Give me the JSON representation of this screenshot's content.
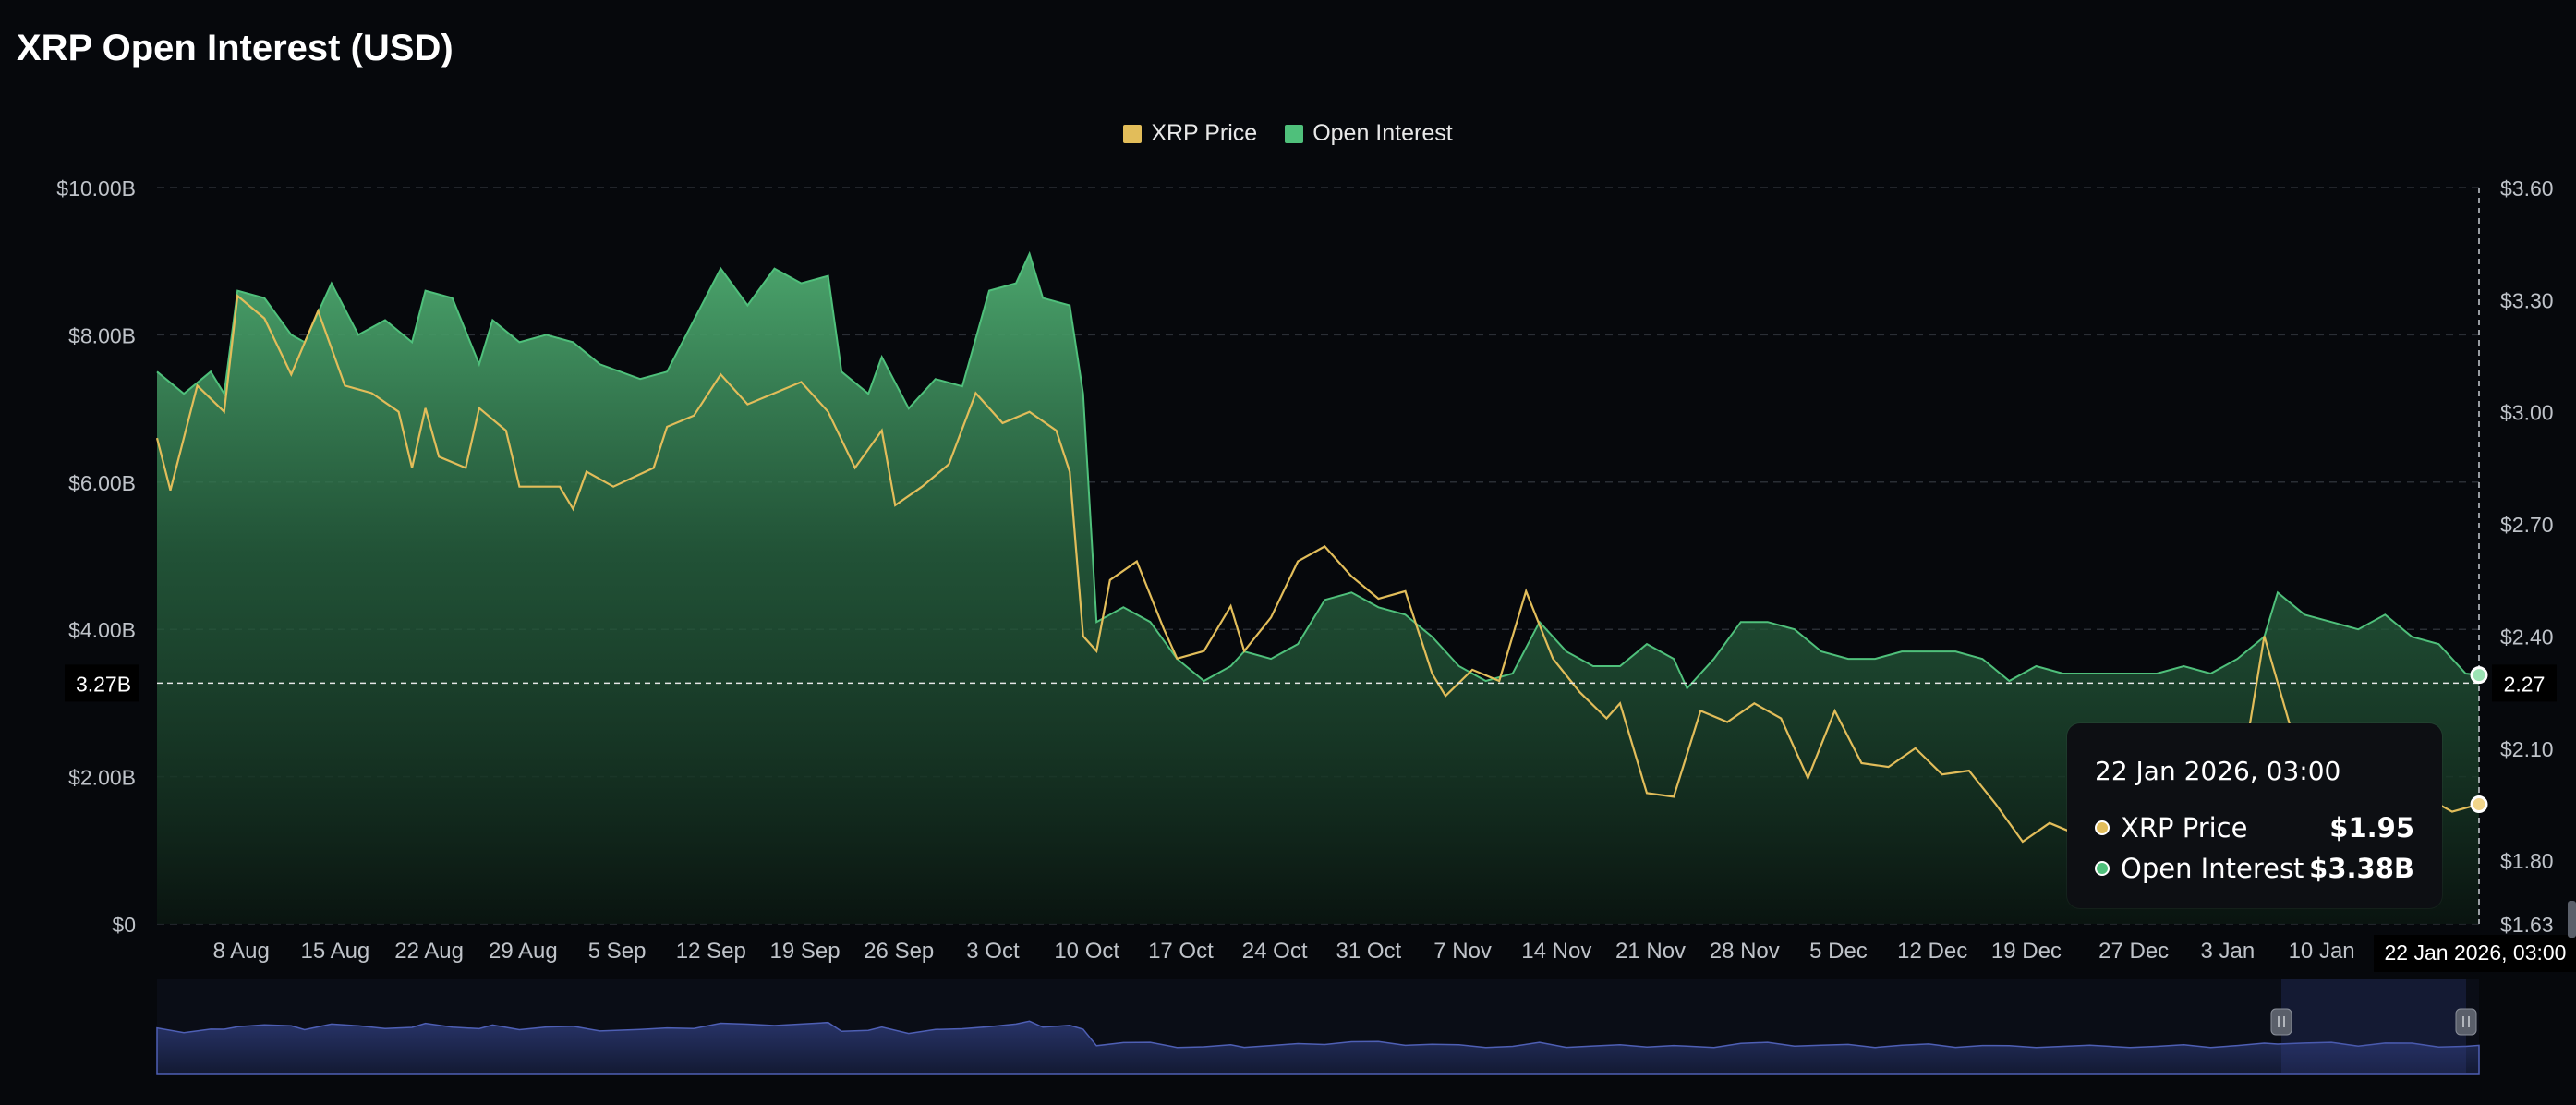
{
  "chart_data": {
    "type": "area",
    "title": "XRP Open Interest (USD)",
    "legend": [
      {
        "name": "XRP Price",
        "color": "#e2bd5a"
      },
      {
        "name": "Open Interest",
        "color": "#4fc07b"
      }
    ],
    "legend_position": "top-center",
    "grid": true,
    "x_ticks": [
      "8 Aug",
      "15 Aug",
      "22 Aug",
      "29 Aug",
      "5 Sep",
      "12 Sep",
      "19 Sep",
      "26 Sep",
      "3 Oct",
      "10 Oct",
      "17 Oct",
      "24 Oct",
      "31 Oct",
      "7 Nov",
      "14 Nov",
      "21 Nov",
      "28 Nov",
      "5 Dec",
      "12 Dec",
      "19 Dec",
      "27 Dec",
      "3 Jan",
      "10 Jan"
    ],
    "x_range": [
      "2025-08-02",
      "2026-01-22"
    ],
    "y_left": {
      "ticks": [
        "$0",
        "$2.00B",
        "$4.00B",
        "$6.00B",
        "$8.00B",
        "$10.00B"
      ],
      "range": [
        0,
        10
      ]
    },
    "y_right": {
      "ticks": [
        "$1.63",
        "$1.80",
        "$2.10",
        "$2.40",
        "$2.70",
        "$3.00",
        "$3.30",
        "$3.60"
      ],
      "range": [
        1.63,
        3.6
      ]
    },
    "series": [
      {
        "name": "Open Interest",
        "unit": "B USD",
        "axis": "left",
        "points": [
          [
            "2025-08-02",
            7.5
          ],
          [
            "2025-08-04",
            7.2
          ],
          [
            "2025-08-06",
            7.5
          ],
          [
            "2025-08-07",
            7.2
          ],
          [
            "2025-08-08",
            8.6
          ],
          [
            "2025-08-10",
            8.5
          ],
          [
            "2025-08-12",
            8.0
          ],
          [
            "2025-08-13",
            7.9
          ],
          [
            "2025-08-15",
            8.7
          ],
          [
            "2025-08-17",
            8.0
          ],
          [
            "2025-08-19",
            8.2
          ],
          [
            "2025-08-21",
            7.9
          ],
          [
            "2025-08-22",
            8.6
          ],
          [
            "2025-08-24",
            8.5
          ],
          [
            "2025-08-26",
            7.6
          ],
          [
            "2025-08-27",
            8.2
          ],
          [
            "2025-08-29",
            7.9
          ],
          [
            "2025-08-31",
            8.0
          ],
          [
            "2025-09-02",
            7.9
          ],
          [
            "2025-09-04",
            7.6
          ],
          [
            "2025-09-07",
            7.4
          ],
          [
            "2025-09-09",
            7.5
          ],
          [
            "2025-09-11",
            8.2
          ],
          [
            "2025-09-13",
            8.9
          ],
          [
            "2025-09-15",
            8.4
          ],
          [
            "2025-09-17",
            8.9
          ],
          [
            "2025-09-19",
            8.7
          ],
          [
            "2025-09-21",
            8.8
          ],
          [
            "2025-09-22",
            7.5
          ],
          [
            "2025-09-24",
            7.2
          ],
          [
            "2025-09-25",
            7.7
          ],
          [
            "2025-09-27",
            7.0
          ],
          [
            "2025-09-29",
            7.4
          ],
          [
            "2025-10-01",
            7.3
          ],
          [
            "2025-10-03",
            8.6
          ],
          [
            "2025-10-05",
            8.7
          ],
          [
            "2025-10-06",
            9.1
          ],
          [
            "2025-10-07",
            8.5
          ],
          [
            "2025-10-09",
            8.4
          ],
          [
            "2025-10-10",
            7.2
          ],
          [
            "2025-10-11",
            4.1
          ],
          [
            "2025-10-13",
            4.3
          ],
          [
            "2025-10-15",
            4.1
          ],
          [
            "2025-10-17",
            3.6
          ],
          [
            "2025-10-19",
            3.3
          ],
          [
            "2025-10-21",
            3.5
          ],
          [
            "2025-10-22",
            3.7
          ],
          [
            "2025-10-24",
            3.6
          ],
          [
            "2025-10-26",
            3.8
          ],
          [
            "2025-10-28",
            4.4
          ],
          [
            "2025-10-30",
            4.5
          ],
          [
            "2025-11-01",
            4.3
          ],
          [
            "2025-11-03",
            4.2
          ],
          [
            "2025-11-05",
            3.9
          ],
          [
            "2025-11-07",
            3.5
          ],
          [
            "2025-11-09",
            3.3
          ],
          [
            "2025-11-11",
            3.4
          ],
          [
            "2025-11-13",
            4.1
          ],
          [
            "2025-11-15",
            3.7
          ],
          [
            "2025-11-17",
            3.5
          ],
          [
            "2025-11-19",
            3.5
          ],
          [
            "2025-11-21",
            3.8
          ],
          [
            "2025-11-23",
            3.6
          ],
          [
            "2025-11-24",
            3.2
          ],
          [
            "2025-11-26",
            3.6
          ],
          [
            "2025-11-28",
            4.1
          ],
          [
            "2025-11-30",
            4.1
          ],
          [
            "2025-12-02",
            4.0
          ],
          [
            "2025-12-04",
            3.7
          ],
          [
            "2025-12-06",
            3.6
          ],
          [
            "2025-12-08",
            3.6
          ],
          [
            "2025-12-10",
            3.7
          ],
          [
            "2025-12-12",
            3.7
          ],
          [
            "2025-12-14",
            3.7
          ],
          [
            "2025-12-16",
            3.6
          ],
          [
            "2025-12-18",
            3.3
          ],
          [
            "2025-12-20",
            3.5
          ],
          [
            "2025-12-22",
            3.4
          ],
          [
            "2025-12-24",
            3.4
          ],
          [
            "2025-12-27",
            3.4
          ],
          [
            "2025-12-29",
            3.4
          ],
          [
            "2025-12-31",
            3.5
          ],
          [
            "2026-01-02",
            3.4
          ],
          [
            "2026-01-04",
            3.6
          ],
          [
            "2026-01-06",
            3.9
          ],
          [
            "2026-01-07",
            4.5
          ],
          [
            "2026-01-09",
            4.2
          ],
          [
            "2026-01-11",
            4.1
          ],
          [
            "2026-01-13",
            4.0
          ],
          [
            "2026-01-15",
            4.2
          ],
          [
            "2026-01-17",
            3.9
          ],
          [
            "2026-01-19",
            3.8
          ],
          [
            "2026-01-21",
            3.4
          ],
          [
            "2026-01-22",
            3.38
          ]
        ]
      },
      {
        "name": "XRP Price",
        "unit": "USD",
        "axis": "right",
        "points": [
          [
            "2025-08-02",
            2.93
          ],
          [
            "2025-08-03",
            2.79
          ],
          [
            "2025-08-05",
            3.07
          ],
          [
            "2025-08-07",
            3.0
          ],
          [
            "2025-08-08",
            3.31
          ],
          [
            "2025-08-10",
            3.25
          ],
          [
            "2025-08-12",
            3.1
          ],
          [
            "2025-08-14",
            3.27
          ],
          [
            "2025-08-16",
            3.07
          ],
          [
            "2025-08-18",
            3.05
          ],
          [
            "2025-08-20",
            3.0
          ],
          [
            "2025-08-21",
            2.85
          ],
          [
            "2025-08-22",
            3.01
          ],
          [
            "2025-08-23",
            2.88
          ],
          [
            "2025-08-25",
            2.85
          ],
          [
            "2025-08-26",
            3.01
          ],
          [
            "2025-08-28",
            2.95
          ],
          [
            "2025-08-29",
            2.8
          ],
          [
            "2025-09-01",
            2.8
          ],
          [
            "2025-09-02",
            2.74
          ],
          [
            "2025-09-03",
            2.84
          ],
          [
            "2025-09-05",
            2.8
          ],
          [
            "2025-09-08",
            2.85
          ],
          [
            "2025-09-09",
            2.96
          ],
          [
            "2025-09-11",
            2.99
          ],
          [
            "2025-09-13",
            3.1
          ],
          [
            "2025-09-15",
            3.02
          ],
          [
            "2025-09-17",
            3.05
          ],
          [
            "2025-09-19",
            3.08
          ],
          [
            "2025-09-21",
            3.0
          ],
          [
            "2025-09-23",
            2.85
          ],
          [
            "2025-09-25",
            2.95
          ],
          [
            "2025-09-26",
            2.75
          ],
          [
            "2025-09-28",
            2.8
          ],
          [
            "2025-09-30",
            2.86
          ],
          [
            "2025-10-02",
            3.05
          ],
          [
            "2025-10-04",
            2.97
          ],
          [
            "2025-10-06",
            3.0
          ],
          [
            "2025-10-08",
            2.95
          ],
          [
            "2025-10-09",
            2.84
          ],
          [
            "2025-10-10",
            2.4
          ],
          [
            "2025-10-11",
            2.36
          ],
          [
            "2025-10-12",
            2.55
          ],
          [
            "2025-10-14",
            2.6
          ],
          [
            "2025-10-16",
            2.42
          ],
          [
            "2025-10-17",
            2.34
          ],
          [
            "2025-10-19",
            2.36
          ],
          [
            "2025-10-21",
            2.48
          ],
          [
            "2025-10-22",
            2.36
          ],
          [
            "2025-10-24",
            2.45
          ],
          [
            "2025-10-26",
            2.6
          ],
          [
            "2025-10-28",
            2.64
          ],
          [
            "2025-10-30",
            2.56
          ],
          [
            "2025-11-01",
            2.5
          ],
          [
            "2025-11-03",
            2.52
          ],
          [
            "2025-11-05",
            2.3
          ],
          [
            "2025-11-06",
            2.24
          ],
          [
            "2025-11-08",
            2.31
          ],
          [
            "2025-11-10",
            2.28
          ],
          [
            "2025-11-12",
            2.52
          ],
          [
            "2025-11-14",
            2.34
          ],
          [
            "2025-11-16",
            2.25
          ],
          [
            "2025-11-18",
            2.18
          ],
          [
            "2025-11-19",
            2.22
          ],
          [
            "2025-11-21",
            1.98
          ],
          [
            "2025-11-23",
            1.97
          ],
          [
            "2025-11-25",
            2.2
          ],
          [
            "2025-11-27",
            2.17
          ],
          [
            "2025-11-29",
            2.22
          ],
          [
            "2025-12-01",
            2.18
          ],
          [
            "2025-12-03",
            2.02
          ],
          [
            "2025-12-05",
            2.2
          ],
          [
            "2025-12-07",
            2.06
          ],
          [
            "2025-12-09",
            2.05
          ],
          [
            "2025-12-11",
            2.1
          ],
          [
            "2025-12-13",
            2.03
          ],
          [
            "2025-12-15",
            2.04
          ],
          [
            "2025-12-17",
            1.95
          ],
          [
            "2025-12-19",
            1.85
          ],
          [
            "2025-12-21",
            1.9
          ],
          [
            "2025-12-23",
            1.87
          ],
          [
            "2025-12-25",
            1.86
          ],
          [
            "2025-12-27",
            1.9
          ],
          [
            "2025-12-29",
            1.88
          ],
          [
            "2025-12-31",
            1.87
          ],
          [
            "2026-01-02",
            1.88
          ],
          [
            "2026-01-04",
            1.96
          ],
          [
            "2026-01-06",
            2.4
          ],
          [
            "2026-01-08",
            2.15
          ],
          [
            "2026-01-10",
            2.12
          ],
          [
            "2026-01-12",
            2.08
          ],
          [
            "2026-01-15",
            2.05
          ],
          [
            "2026-01-18",
            1.97
          ],
          [
            "2026-01-20",
            1.93
          ],
          [
            "2026-01-22",
            1.95
          ]
        ]
      }
    ],
    "crosshair": {
      "left_value_label": "3.27B",
      "right_value_label": "2.27",
      "x_label": "22 Jan 2026, 03:00"
    },
    "tooltip": {
      "date": "22 Jan 2026, 03:00",
      "rows": [
        {
          "name": "XRP Price",
          "value": "$1.95"
        },
        {
          "name": "Open Interest",
          "value": "$3.38B"
        }
      ]
    }
  },
  "colors": {
    "background": "#06080c",
    "oi_line": "#4fc07b",
    "price_line": "#e2bd5a",
    "navigator": "#4e5fb4"
  }
}
